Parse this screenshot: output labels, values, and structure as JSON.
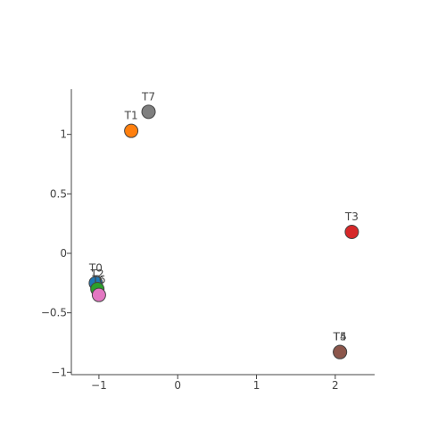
{
  "chart_data": {
    "type": "scatter",
    "title": "",
    "xlabel": "",
    "ylabel": "",
    "xlim": [
      -1.35,
      2.5
    ],
    "ylim": [
      -1.02,
      1.38
    ],
    "grid": false,
    "legend": "none",
    "xticks": [
      -1,
      0,
      1,
      2
    ],
    "xtick_labels": [
      "−1",
      "0",
      "1",
      "2"
    ],
    "yticks": [
      -1,
      -0.5,
      0,
      0.5,
      1
    ],
    "ytick_labels": [
      "−1",
      "−0.5",
      "0",
      "0.5",
      "1"
    ],
    "points": [
      {
        "label": "T0",
        "x": -1.04,
        "y": -0.25,
        "color": "#1f77b4"
      },
      {
        "label": "T1",
        "x": -0.59,
        "y": 1.03,
        "color": "#ff7f0e"
      },
      {
        "label": "T2",
        "x": -1.02,
        "y": -0.3,
        "color": "#2ca02c"
      },
      {
        "label": "T3",
        "x": 2.21,
        "y": 0.18,
        "color": "#d62728"
      },
      {
        "label": "T4",
        "x": 2.06,
        "y": -0.83,
        "color": "#9467bd"
      },
      {
        "label": "T5",
        "x": 2.06,
        "y": -0.83,
        "color": "#8c564b"
      },
      {
        "label": "T6",
        "x": -1.0,
        "y": -0.35,
        "color": "#e377c2"
      },
      {
        "label": "T7",
        "x": -0.37,
        "y": 1.19,
        "color": "#7f7f7f"
      }
    ]
  }
}
